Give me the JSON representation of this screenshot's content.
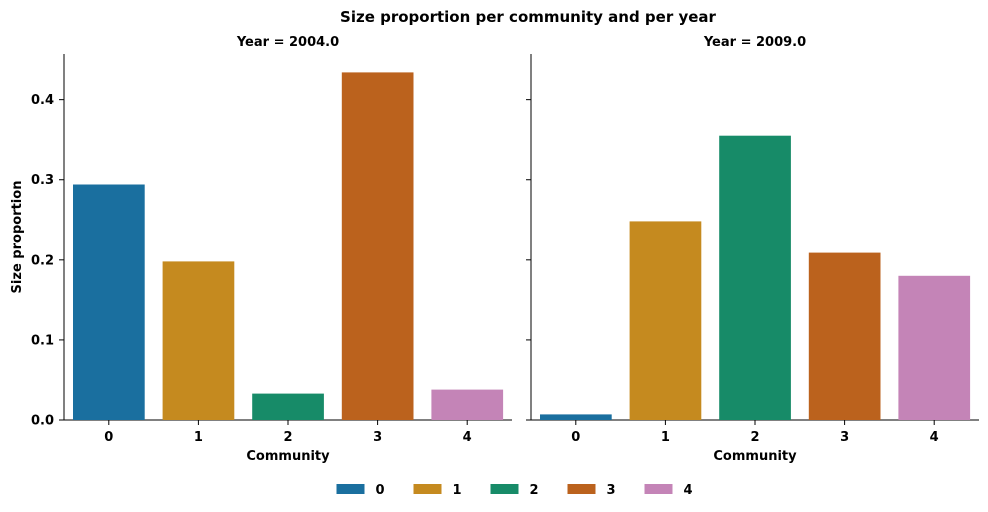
{
  "chart_data": {
    "type": "bar",
    "title": "Size proportion per community and per year",
    "ylabel": "Size proportion",
    "ylim": [
      0,
      0.457
    ],
    "yticks": [
      0.0,
      0.1,
      0.2,
      0.3,
      0.4
    ],
    "yticklabels": [
      "0.0",
      "0.1",
      "0.2",
      "0.3",
      "0.4"
    ],
    "categories": [
      "0",
      "1",
      "2",
      "3",
      "4"
    ],
    "colors": [
      "#1a6f9f",
      "#c58a1f",
      "#178b68",
      "#bb621d",
      "#c484b7"
    ],
    "legend": {
      "placement": "bottom-center",
      "entries": [
        "0",
        "1",
        "2",
        "3",
        "4"
      ]
    },
    "panels": [
      {
        "subtitle": "Year = 2004.0",
        "xlabel": "Community",
        "values": [
          0.294,
          0.198,
          0.033,
          0.434,
          0.038
        ]
      },
      {
        "subtitle": "Year = 2009.0",
        "xlabel": "Community",
        "values": [
          0.007,
          0.248,
          0.355,
          0.209,
          0.18
        ]
      }
    ]
  }
}
